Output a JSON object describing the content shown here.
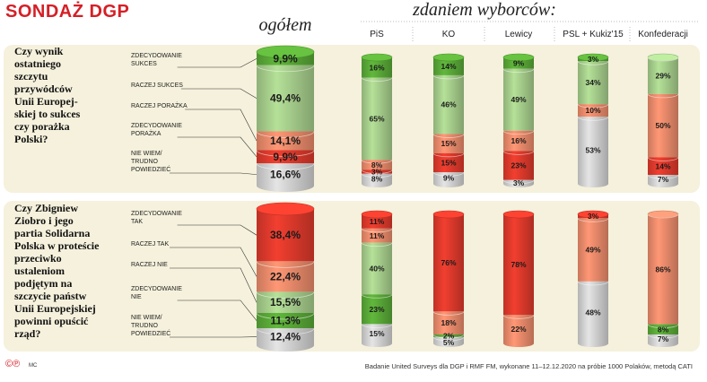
{
  "title": "SONDAŻ DGP",
  "header_overall": "ogółem",
  "header_voters": "zdaniem wyborców:",
  "columns": [
    "PiS",
    "KO",
    "Lewicy",
    "PSL + Kukiz'15",
    "Konfederacji"
  ],
  "footer_logo": "©℗",
  "footer_author": "MC",
  "footer_source": "Badanie United Surveys dla DGP i RMF FM, wykonane 11–12.12.2020 na próbie 1000 Polaków, metodą CATI",
  "colors": {
    "dark_green": "#5aaa38",
    "light_green": "#a8d08d",
    "light_red": "#ec8c6c",
    "red": "#e03a2c",
    "gray": "#d4d4d4",
    "panel": "#f5f1dc",
    "title_red": "#d51f26"
  },
  "chart_data": [
    {
      "type": "bar",
      "question": [
        "Czy wynik",
        "ostatniego",
        "szczytu",
        "przywódców",
        "Unii Europej-",
        "skiej to sukces",
        "czy porażka",
        "Polski?"
      ],
      "legend": [
        [
          "ZDECYDOWANIE",
          "SUKCES"
        ],
        [
          "RACZEJ SUKCES"
        ],
        [
          "RACZEJ PORAŻKA"
        ],
        [
          "ZDECYDOWANIE",
          "PORAŻKA"
        ],
        [
          "NIE WIEM/",
          "TRUDNO",
          "POWIEDZIEĆ"
        ]
      ],
      "overall_labels": [
        "9,9%",
        "49,4%",
        "14,1%",
        "9,9%",
        "16,6%"
      ],
      "overall_values": [
        9.9,
        49.4,
        14.1,
        9.9,
        16.6
      ],
      "segment_colors": [
        "dark_green",
        "light_green",
        "light_red",
        "red",
        "gray"
      ],
      "series": [
        {
          "name": "PiS",
          "values": [
            16,
            65,
            8,
            3,
            8
          ],
          "labels": [
            "16%",
            "65%",
            "8%",
            "3%",
            "8%"
          ]
        },
        {
          "name": "KO",
          "values": [
            14,
            46,
            15,
            15,
            9
          ],
          "labels": [
            "14%",
            "46%",
            "15%",
            "15%",
            "9%"
          ]
        },
        {
          "name": "Lewicy",
          "values": [
            9,
            49,
            16,
            23,
            3
          ],
          "labels": [
            "9%",
            "49%",
            "16%",
            "23%",
            "3%"
          ]
        },
        {
          "name": "PSL + Kukiz'15",
          "values": [
            3,
            34,
            10,
            0,
            53
          ],
          "labels": [
            "3%",
            "34%",
            "10%",
            "",
            "53%"
          ]
        },
        {
          "name": "Konfederacji",
          "values": [
            0,
            29,
            50,
            14,
            7
          ],
          "labels": [
            "",
            "29%",
            "50%",
            "14%",
            "7%"
          ]
        }
      ]
    },
    {
      "type": "bar",
      "question": [
        "Czy Zbigniew",
        "Ziobro i jego",
        "partia Solidarna",
        "Polska w proteście",
        "przeciwko",
        "ustaleniom",
        "podjętym na",
        "szczycie państw",
        "Unii Europejskiej",
        "powinni opuścić",
        "rząd?"
      ],
      "legend": [
        [
          "ZDECYDOWANIE",
          "TAK"
        ],
        [
          "RACZEJ TAK"
        ],
        [
          "RACZEJ NIE"
        ],
        [
          "ZDECYDOWANIE",
          "NIE"
        ],
        [
          "NIE WIEM/",
          "TRUDNO",
          "POWIEDZIEĆ"
        ]
      ],
      "overall_labels": [
        "38,4%",
        "22,4%",
        "15,5%",
        "11,3%",
        "12,4%"
      ],
      "overall_values": [
        38.4,
        22.4,
        15.5,
        11.3,
        12.4
      ],
      "segment_colors": [
        "red",
        "light_red",
        "light_green",
        "dark_green",
        "gray"
      ],
      "series": [
        {
          "name": "PiS",
          "values": [
            11,
            11,
            40,
            23,
            15
          ],
          "labels": [
            "11%",
            "11%",
            "40%",
            "23%",
            "15%"
          ]
        },
        {
          "name": "KO",
          "values": [
            76,
            18,
            0,
            2,
            5
          ],
          "labels": [
            "76%",
            "18%",
            "",
            "2%",
            "5%"
          ]
        },
        {
          "name": "Lewicy",
          "values": [
            78,
            22,
            0,
            0,
            0
          ],
          "labels": [
            "78%",
            "22%",
            "",
            "",
            ""
          ]
        },
        {
          "name": "PSL + Kukiz'15",
          "values": [
            3,
            49,
            0,
            0,
            48
          ],
          "labels": [
            "3%",
            "49%",
            "",
            "",
            "48%"
          ]
        },
        {
          "name": "Konfederacji",
          "values": [
            0,
            86,
            0,
            8,
            7
          ],
          "labels": [
            "",
            "86%",
            "",
            "8%",
            "7%"
          ]
        }
      ]
    }
  ]
}
